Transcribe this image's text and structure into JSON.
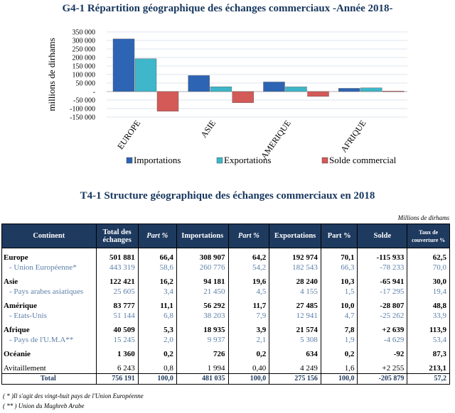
{
  "chart_title": "G4-1 Répartition géographique des échanges commerciaux -Année 2018-",
  "chart_data": {
    "type": "bar",
    "title": "G4-1 Répartition géographique des échanges commerciaux -Année 2018-",
    "ylabel": "millions  de dirhams",
    "xlabel": "",
    "categories": [
      "EUROPE",
      "ASIE",
      "AMERIQUE",
      "AFRIQUE"
    ],
    "series": [
      {
        "name": "Importations",
        "color": "#2e64b4",
        "values": [
          308907,
          94181,
          56292,
          18935
        ]
      },
      {
        "name": "Exportations",
        "color": "#3fb6c9",
        "values": [
          192974,
          28240,
          27485,
          21574
        ]
      },
      {
        "name": "Solde commercial",
        "color": "#d35a57",
        "values": [
          -115933,
          -65941,
          -28807,
          2639
        ]
      }
    ],
    "ylim": [
      -150000,
      350000
    ],
    "yticks": [
      "350 000",
      "300 000",
      "250 000",
      "200 000",
      "150 000",
      "100 000",
      "50 000",
      "-",
      "-50 000",
      "-100 000",
      "-150 000"
    ],
    "grid": true,
    "legend": "bottom"
  },
  "table": {
    "title": "T4-1 Structure géographique des échanges commerciaux en 2018",
    "unit": "Millions de dirhams",
    "headers": [
      "Continent",
      "Total des échanges",
      "Part %",
      "Importations",
      "Part %",
      "Exportations",
      "Part %",
      "Solde",
      "Taux de couverture %"
    ],
    "rows": [
      {
        "type": "main first",
        "cells": [
          "Europe",
          "501 881",
          "66,4",
          "308 907",
          "64,2",
          "192 974",
          "70,1",
          "-115 933",
          "62,5"
        ]
      },
      {
        "type": "sub",
        "cells": [
          "- Union Européenne*",
          "443 319",
          "58,6",
          "260 776",
          "54,2",
          "182 543",
          "66,3",
          "-78 233",
          "70,0"
        ]
      },
      {
        "type": "main first",
        "cells": [
          "Asie",
          "122 421",
          "16,2",
          "94 181",
          "19,6",
          "28 240",
          "10,3",
          "-65 941",
          "30,0"
        ]
      },
      {
        "type": "sub",
        "cells": [
          "- Pays arabes asiatiques",
          "25 605",
          "3,4",
          "21 450",
          "4,5",
          "4 155",
          "1,5",
          "-17 295",
          "19,4"
        ]
      },
      {
        "type": "main first",
        "cells": [
          "Amérique",
          "83 777",
          "11,1",
          "56 292",
          "11,7",
          "27 485",
          "10,0",
          "-28 807",
          "48,8"
        ]
      },
      {
        "type": "sub",
        "cells": [
          "- Etats-Unis",
          "51 144",
          "6,8",
          "38 203",
          "7,9",
          "12 941",
          "4,7",
          "-25 262",
          "33,9"
        ]
      },
      {
        "type": "main first",
        "cells": [
          "Afrique",
          "40 509",
          "5,3",
          "18 935",
          "3,9",
          "21 574",
          "7,8",
          "+2 639",
          "113,9"
        ]
      },
      {
        "type": "sub",
        "cells": [
          "- Pays de l'U.M.A**",
          "15 245",
          "2,0",
          "9 937",
          "2,1",
          "5 308",
          "1,9",
          "-4 629",
          "53,4"
        ]
      },
      {
        "type": "main first",
        "cells": [
          "Océanie",
          "1 360",
          "0,2",
          "726",
          "0,2",
          "634",
          "0,2",
          "-92",
          "87,3"
        ]
      },
      {
        "type": "avit first",
        "cells": [
          "Avitaillement",
          "6 243",
          "0,8",
          "1 994",
          "0,40",
          "4 249",
          "1,6",
          "+2 255",
          "213,1"
        ]
      },
      {
        "type": "total",
        "cells": [
          "Total",
          "756 191",
          "100,0",
          "481 035",
          "100,0",
          "275 156",
          "100,0",
          "-205 879",
          "57,2"
        ]
      }
    ],
    "footnotes": [
      "( * )Il s'agit des vingt-huit pays de l'Union Européenne",
      "( ** ) Union du Maghreb Arabe"
    ]
  }
}
